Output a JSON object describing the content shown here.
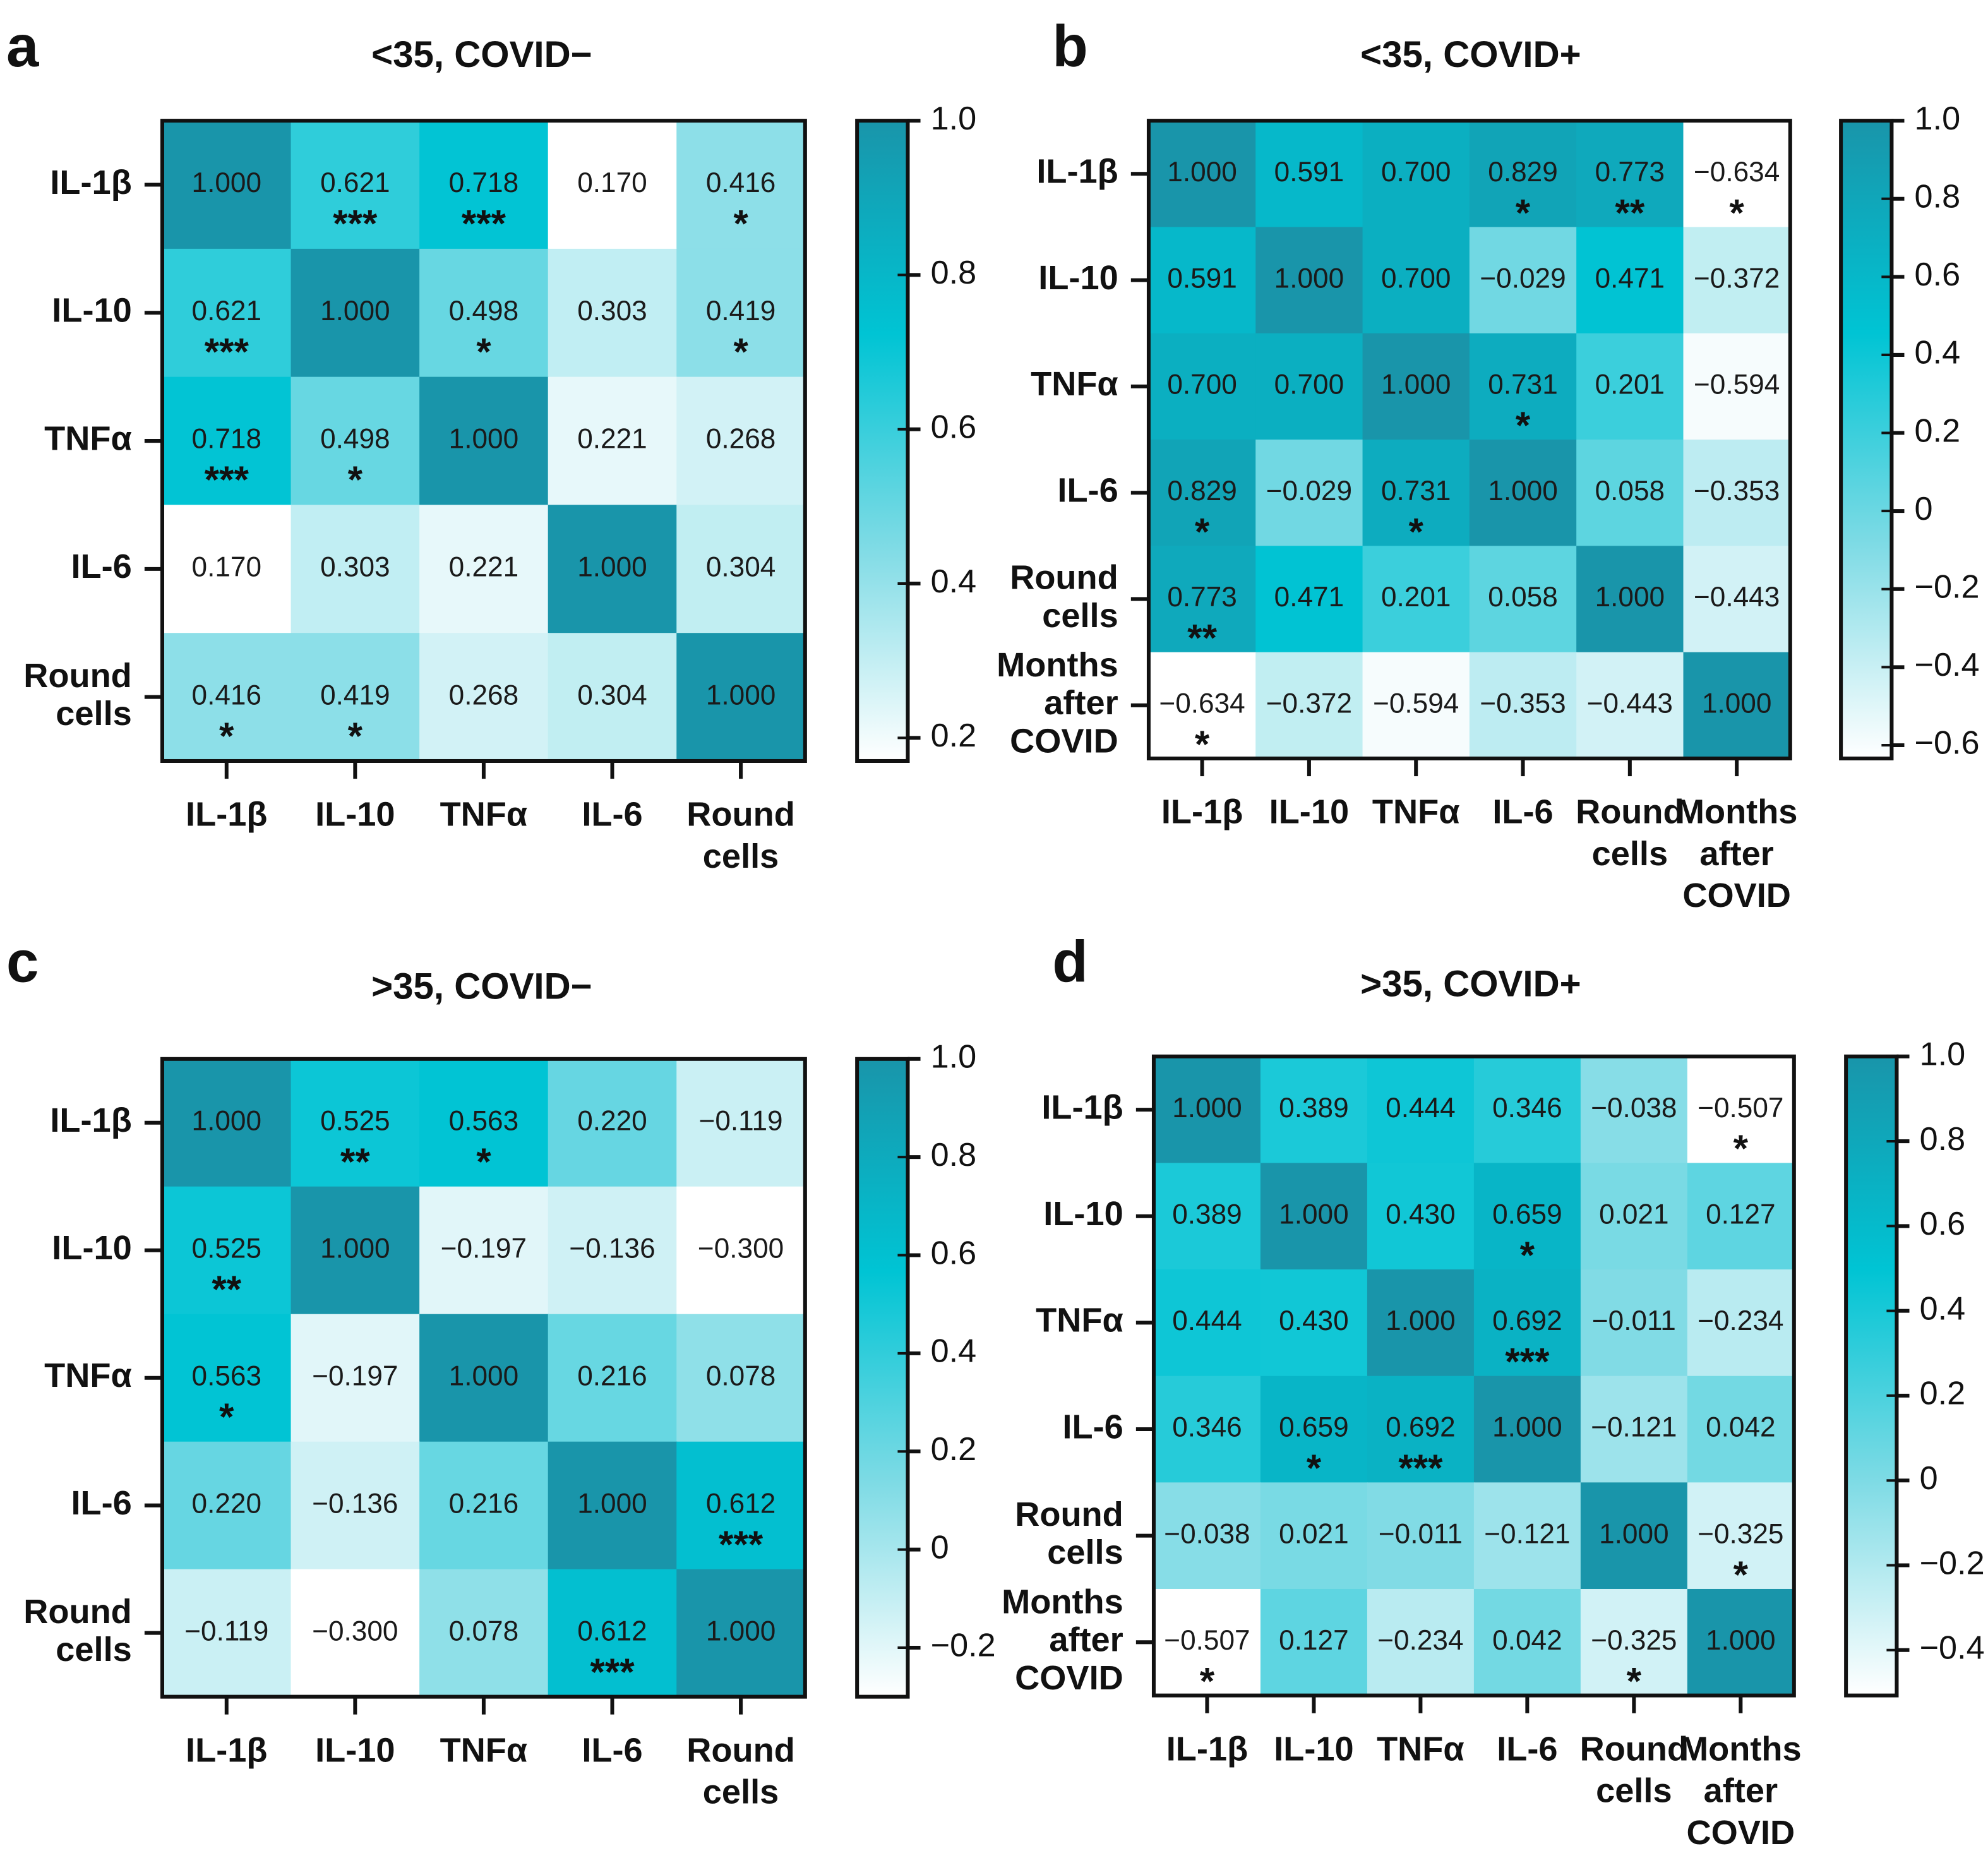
{
  "chart_data": [
    {
      "type": "heatmap",
      "panel_label": "a",
      "title": "<35, COVID−",
      "categories": [
        [
          "IL-1β"
        ],
        [
          "IL-10"
        ],
        [
          "TNFα"
        ],
        [
          "IL-6"
        ],
        [
          "Round",
          "cells"
        ]
      ],
      "values": [
        [
          1,
          0.621,
          0.718,
          0.17,
          0.416
        ],
        [
          0.621,
          1,
          0.498,
          0.303,
          0.419
        ],
        [
          0.718,
          0.498,
          1,
          0.221,
          0.268
        ],
        [
          0.17,
          0.303,
          0.221,
          1,
          0.304
        ],
        [
          0.416,
          0.419,
          0.268,
          0.304,
          1
        ]
      ],
      "value_labels": [
        [
          "1.000",
          "0.621",
          "0.718",
          "0.170",
          "0.416"
        ],
        [
          "0.621",
          "1.000",
          "0.498",
          "0.303",
          "0.419"
        ],
        [
          "0.718",
          "0.498",
          "1.000",
          "0.221",
          "0.268"
        ],
        [
          "0.170",
          "0.303",
          "0.221",
          "1.000",
          "0.304"
        ],
        [
          "0.416",
          "0.419",
          "0.268",
          "0.304",
          "1.000"
        ]
      ],
      "significance": [
        [
          null,
          "***",
          "***",
          null,
          "*"
        ],
        [
          "***",
          null,
          "*",
          null,
          "*"
        ],
        [
          "***",
          "*",
          null,
          null,
          null
        ],
        [
          null,
          null,
          null,
          null,
          null
        ],
        [
          "*",
          "*",
          null,
          null,
          null
        ]
      ],
      "colormap": [
        "#ffffff",
        "#7fdbe5",
        "#00c4d4",
        "#1995aa"
      ],
      "clim": [
        0.17,
        1
      ],
      "cticks": [
        {
          "value": 1,
          "label": "1.0"
        },
        0.8,
        0.6,
        0.4,
        0.2
      ]
    },
    {
      "type": "heatmap",
      "panel_label": "b",
      "title": "<35, COVID+",
      "categories": [
        [
          "IL-1β"
        ],
        [
          "IL-10"
        ],
        [
          "TNFα"
        ],
        [
          "IL-6"
        ],
        [
          "Round",
          "cells"
        ],
        [
          "Months",
          "after",
          "COVID"
        ]
      ],
      "values": [
        [
          1,
          0.591,
          0.7,
          0.829,
          0.773,
          -0.634
        ],
        [
          0.591,
          1,
          0.7,
          -0.029,
          0.471,
          -0.372
        ],
        [
          0.7,
          0.7,
          1,
          0.731,
          0.201,
          -0.594
        ],
        [
          0.829,
          -0.029,
          0.731,
          1,
          0.058,
          -0.353
        ],
        [
          0.773,
          0.471,
          0.201,
          0.058,
          1,
          -0.443
        ],
        [
          -0.634,
          -0.372,
          -0.594,
          -0.353,
          -0.443,
          1
        ]
      ],
      "value_labels": [
        [
          "1.000",
          "0.591",
          "0.700",
          "0.829",
          "0.773",
          "−0.634"
        ],
        [
          "0.591",
          "1.000",
          "0.700",
          "−0.029",
          "0.471",
          "−0.372"
        ],
        [
          "0.700",
          "0.700",
          "1.000",
          "0.731",
          "0.201",
          "−0.594"
        ],
        [
          "0.829",
          "−0.029",
          "0.731",
          "1.000",
          "0.058",
          "−0.353"
        ],
        [
          "0.773",
          "0.471",
          "0.201",
          "0.058",
          "1.000",
          "−0.443"
        ],
        [
          "−0.634",
          "−0.372",
          "−0.594",
          "−0.353",
          "−0.443",
          "1.000"
        ]
      ],
      "significance": [
        [
          null,
          null,
          null,
          "*",
          "**",
          "*"
        ],
        [
          null,
          null,
          null,
          null,
          null,
          null
        ],
        [
          null,
          null,
          null,
          "*",
          null,
          null
        ],
        [
          "*",
          null,
          "*",
          null,
          null,
          null
        ],
        [
          "**",
          null,
          null,
          null,
          null,
          null
        ],
        [
          "*",
          null,
          null,
          null,
          null,
          null
        ]
      ],
      "colormap": [
        "#ffffff",
        "#7fdbe5",
        "#00c4d4",
        "#1995aa"
      ],
      "clim": [
        -0.634,
        1
      ],
      "cticks": [
        {
          "value": 1,
          "label": "1.0"
        },
        0.8,
        0.6,
        0.4,
        0.2,
        0,
        {
          "value": -0.2,
          "label": "−0.2"
        },
        {
          "value": -0.4,
          "label": "−0.4"
        },
        {
          "value": -0.6,
          "label": "−0.6"
        }
      ]
    },
    {
      "type": "heatmap",
      "panel_label": "c",
      "title": ">35, COVID−",
      "categories": [
        [
          "IL-1β"
        ],
        [
          "IL-10"
        ],
        [
          "TNFα"
        ],
        [
          "IL-6"
        ],
        [
          "Round",
          "cells"
        ]
      ],
      "values": [
        [
          1,
          0.525,
          0.563,
          0.22,
          -0.119
        ],
        [
          0.525,
          1,
          -0.197,
          -0.136,
          -0.3
        ],
        [
          0.563,
          -0.197,
          1,
          0.216,
          0.078
        ],
        [
          0.22,
          -0.136,
          0.216,
          1,
          0.612
        ],
        [
          -0.119,
          -0.3,
          0.078,
          0.612,
          1
        ]
      ],
      "value_labels": [
        [
          "1.000",
          "0.525",
          "0.563",
          "0.220",
          "−0.119"
        ],
        [
          "0.525",
          "1.000",
          "−0.197",
          "−0.136",
          "−0.300"
        ],
        [
          "0.563",
          "−0.197",
          "1.000",
          "0.216",
          "0.078"
        ],
        [
          "0.220",
          "−0.136",
          "0.216",
          "1.000",
          "0.612"
        ],
        [
          "−0.119",
          "−0.300",
          "0.078",
          "0.612",
          "1.000"
        ]
      ],
      "significance": [
        [
          null,
          "**",
          "*",
          null,
          null
        ],
        [
          "**",
          null,
          null,
          null,
          null
        ],
        [
          "*",
          null,
          null,
          null,
          null
        ],
        [
          null,
          null,
          null,
          null,
          "***"
        ],
        [
          null,
          null,
          null,
          "***",
          null
        ]
      ],
      "colormap": [
        "#ffffff",
        "#7fdbe5",
        "#00c4d4",
        "#1995aa"
      ],
      "clim": [
        -0.3,
        1
      ],
      "cticks": [
        {
          "value": 1,
          "label": "1.0"
        },
        0.8,
        0.6,
        0.4,
        0.2,
        0,
        {
          "value": -0.2,
          "label": "−0.2"
        }
      ]
    },
    {
      "type": "heatmap",
      "panel_label": "d",
      "title": ">35, COVID+",
      "categories": [
        [
          "IL-1β"
        ],
        [
          "IL-10"
        ],
        [
          "TNFα"
        ],
        [
          "IL-6"
        ],
        [
          "Round",
          "cells"
        ],
        [
          "Months",
          "after",
          "COVID"
        ]
      ],
      "values": [
        [
          1,
          0.389,
          0.444,
          0.346,
          -0.038,
          -0.507
        ],
        [
          0.389,
          1,
          0.43,
          0.659,
          0.021,
          0.127
        ],
        [
          0.444,
          0.43,
          1,
          0.692,
          -0.011,
          -0.234
        ],
        [
          0.346,
          0.659,
          0.692,
          1,
          -0.121,
          0.042
        ],
        [
          -0.038,
          0.021,
          -0.011,
          -0.121,
          1,
          -0.325
        ],
        [
          -0.507,
          0.127,
          -0.234,
          0.042,
          -0.325,
          1
        ]
      ],
      "value_labels": [
        [
          "1.000",
          "0.389",
          "0.444",
          "0.346",
          "−0.038",
          "−0.507"
        ],
        [
          "0.389",
          "1.000",
          "0.430",
          "0.659",
          "0.021",
          "0.127"
        ],
        [
          "0.444",
          "0.430",
          "1.000",
          "0.692",
          "−0.011",
          "−0.234"
        ],
        [
          "0.346",
          "0.659",
          "0.692",
          "1.000",
          "−0.121",
          "0.042"
        ],
        [
          "−0.038",
          "0.021",
          "−0.011",
          "−0.121",
          "1.000",
          "−0.325"
        ],
        [
          "−0.507",
          "0.127",
          "−0.234",
          "0.042",
          "−0.325",
          "1.000"
        ]
      ],
      "significance": [
        [
          null,
          null,
          null,
          null,
          null,
          "*"
        ],
        [
          null,
          null,
          null,
          "*",
          null,
          null
        ],
        [
          null,
          null,
          null,
          "***",
          null,
          null
        ],
        [
          null,
          "*",
          "***",
          null,
          null,
          null
        ],
        [
          null,
          null,
          null,
          null,
          null,
          "*"
        ],
        [
          "*",
          null,
          null,
          null,
          "*",
          null
        ]
      ],
      "colormap": [
        "#ffffff",
        "#7fdbe5",
        "#00c4d4",
        "#1995aa"
      ],
      "clim": [
        -0.507,
        1
      ],
      "cticks": [
        {
          "value": 1,
          "label": "1.0"
        },
        0.8,
        0.6,
        0.4,
        0.2,
        0,
        {
          "value": -0.2,
          "label": "−0.2"
        },
        {
          "value": -0.4,
          "label": "−0.4"
        }
      ]
    }
  ]
}
